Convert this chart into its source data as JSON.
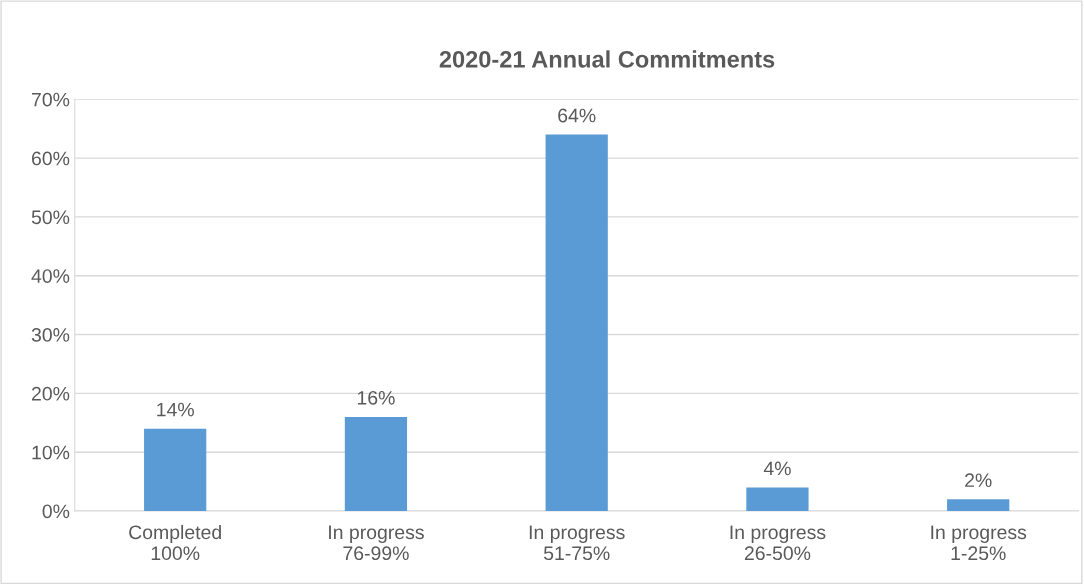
{
  "chart_data": {
    "type": "bar",
    "title": "2020-21 Annual Commitments",
    "categories": [
      "Completed\n100%",
      "In progress\n76-99%",
      "In progress\n51-75%",
      "In progress\n26-50%",
      "In progress\n1-25%"
    ],
    "values": [
      14,
      16,
      64,
      4,
      2
    ],
    "color": "#5b9bd5",
    "value_labels": [
      "14%",
      "16%",
      "64%",
      "4%",
      "2%"
    ],
    "ylim": [
      0,
      70
    ],
    "yticks": [
      {
        "value": 0,
        "label": "0%"
      },
      {
        "value": 10,
        "label": "10%"
      },
      {
        "value": 20,
        "label": "20%"
      },
      {
        "value": 30,
        "label": "30%"
      },
      {
        "value": 40,
        "label": "40%"
      },
      {
        "value": 50,
        "label": "50%"
      },
      {
        "value": 60,
        "label": "60%"
      },
      {
        "value": 70,
        "label": "70%"
      }
    ],
    "grid": "y",
    "legend": false
  }
}
